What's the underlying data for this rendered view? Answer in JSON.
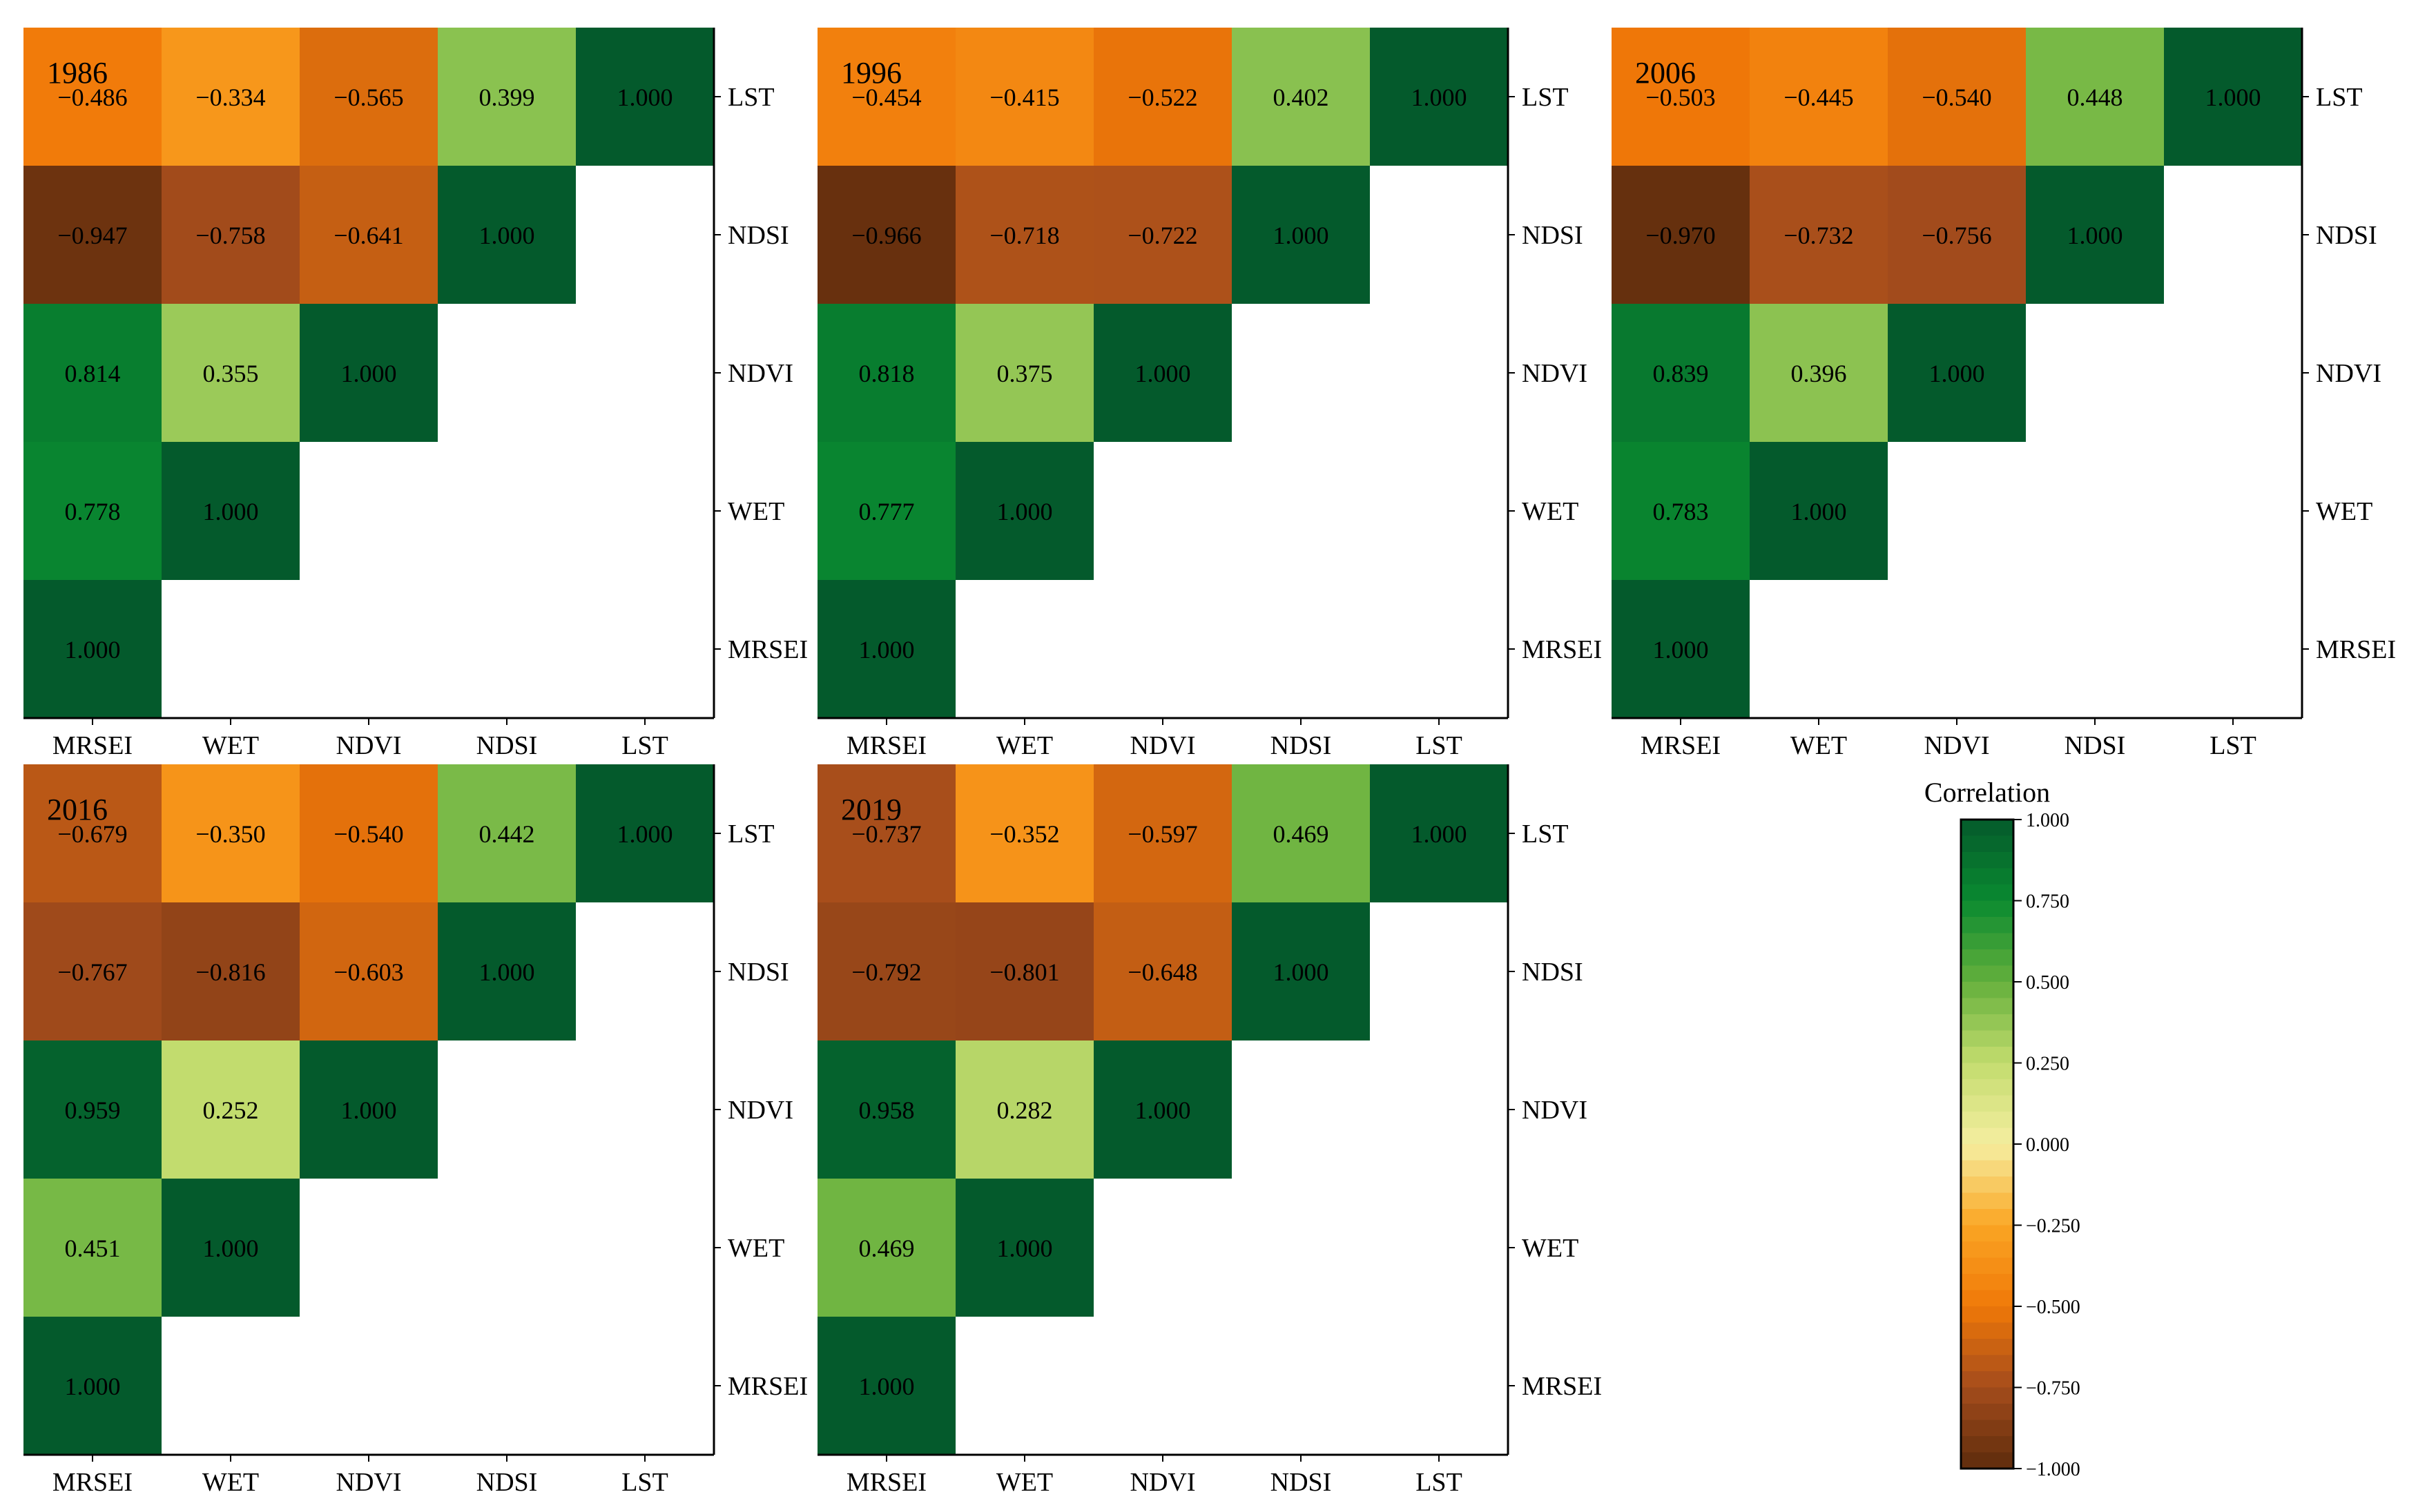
{
  "chart_data": {
    "type": "heatmap",
    "variables": [
      "MRSEI",
      "WET",
      "NDVI",
      "NDSI",
      "LST"
    ],
    "panels": [
      {
        "title": "1986",
        "matrix": [
          [
            1.0,
            null,
            null,
            null,
            null
          ],
          [
            0.778,
            1.0,
            null,
            null,
            null
          ],
          [
            0.814,
            0.355,
            1.0,
            null,
            null
          ],
          [
            -0.947,
            -0.758,
            -0.641,
            1.0,
            null
          ],
          [
            -0.486,
            -0.334,
            -0.565,
            0.399,
            1.0
          ]
        ],
        "labels": [
          [
            "1.000",
            "",
            "",
            "",
            ""
          ],
          [
            "0.778",
            "1.000",
            "",
            "",
            ""
          ],
          [
            "0.814",
            "0.355",
            "1.000",
            "",
            ""
          ],
          [
            "−0.947",
            "−0.758",
            "−0.641",
            "1.000",
            ""
          ],
          [
            "−0.486",
            "−0.334",
            "−0.565",
            "0.399",
            "1.000"
          ]
        ]
      },
      {
        "title": "1996",
        "matrix": [
          [
            1.0,
            null,
            null,
            null,
            null
          ],
          [
            0.777,
            1.0,
            null,
            null,
            null
          ],
          [
            0.818,
            0.375,
            1.0,
            null,
            null
          ],
          [
            -0.966,
            -0.718,
            -0.722,
            1.0,
            null
          ],
          [
            -0.454,
            -0.415,
            -0.522,
            0.402,
            1.0
          ]
        ],
        "labels": [
          [
            "1.000",
            "",
            "",
            "",
            ""
          ],
          [
            "0.777",
            "1.000",
            "",
            "",
            ""
          ],
          [
            "0.818",
            "0.375",
            "1.000",
            "",
            ""
          ],
          [
            "−0.966",
            "−0.718",
            "−0.722",
            "1.000",
            ""
          ],
          [
            "−0.454",
            "−0.415",
            "−0.522",
            "0.402",
            "1.000"
          ]
        ]
      },
      {
        "title": "2006",
        "matrix": [
          [
            1.0,
            null,
            null,
            null,
            null
          ],
          [
            0.783,
            1.0,
            null,
            null,
            null
          ],
          [
            0.839,
            0.396,
            1.0,
            null,
            null
          ],
          [
            -0.97,
            -0.732,
            -0.756,
            1.0,
            null
          ],
          [
            -0.503,
            -0.445,
            -0.54,
            0.448,
            1.0
          ]
        ],
        "labels": [
          [
            "1.000",
            "",
            "",
            "",
            ""
          ],
          [
            "0.783",
            "1.000",
            "",
            "",
            ""
          ],
          [
            "0.839",
            "0.396",
            "1.000",
            "",
            ""
          ],
          [
            "−0.970",
            "−0.732",
            "−0.756",
            "1.000",
            ""
          ],
          [
            "−0.503",
            "−0.445",
            "−0.540",
            "0.448",
            "1.000"
          ]
        ]
      },
      {
        "title": "2016",
        "matrix": [
          [
            1.0,
            null,
            null,
            null,
            null
          ],
          [
            0.451,
            1.0,
            null,
            null,
            null
          ],
          [
            0.959,
            0.252,
            1.0,
            null,
            null
          ],
          [
            -0.767,
            -0.816,
            -0.603,
            1.0,
            null
          ],
          [
            -0.679,
            -0.35,
            -0.54,
            0.442,
            1.0
          ]
        ],
        "labels": [
          [
            "1.000",
            "",
            "",
            "",
            ""
          ],
          [
            "0.451",
            "1.000",
            "",
            "",
            ""
          ],
          [
            "0.959",
            "0.252",
            "1.000",
            "",
            ""
          ],
          [
            "−0.767",
            "−0.816",
            "−0.603",
            "1.000",
            ""
          ],
          [
            "−0.679",
            "−0.350",
            "−0.540",
            "0.442",
            "1.000"
          ]
        ]
      },
      {
        "title": "2019",
        "matrix": [
          [
            1.0,
            null,
            null,
            null,
            null
          ],
          [
            0.469,
            1.0,
            null,
            null,
            null
          ],
          [
            0.958,
            0.282,
            1.0,
            null,
            null
          ],
          [
            -0.792,
            -0.801,
            -0.648,
            1.0,
            null
          ],
          [
            -0.737,
            -0.352,
            -0.597,
            0.469,
            1.0
          ]
        ],
        "labels": [
          [
            "1.000",
            "",
            "",
            "",
            ""
          ],
          [
            "0.469",
            "1.000",
            "",
            "",
            ""
          ],
          [
            "0.958",
            "0.282",
            "1.000",
            "",
            ""
          ],
          [
            "−0.792",
            "−0.801",
            "−0.648",
            "1.000",
            ""
          ],
          [
            "−0.737",
            "−0.352",
            "−0.597",
            "0.469",
            "1.000"
          ]
        ]
      }
    ],
    "colorbar": {
      "title": "Correlation",
      "range": [
        -1.0,
        1.0
      ],
      "ticks": [
        1.0,
        0.75,
        0.5,
        0.25,
        0.0,
        -0.25,
        -0.5,
        -0.75,
        -1.0
      ],
      "tick_labels": [
        "1.000",
        "0.750",
        "0.500",
        "0.250",
        "0.000",
        "−0.250",
        "−0.500",
        "−0.750",
        "−1.000"
      ],
      "colorscale": [
        [
          -1.0,
          "#5e2c0c"
        ],
        [
          -0.75,
          "#a44c1c"
        ],
        [
          -0.5,
          "#f07808"
        ],
        [
          -0.25,
          "#faa624"
        ],
        [
          0.0,
          "#f5eea0"
        ],
        [
          0.25,
          "#c3dc6e"
        ],
        [
          0.5,
          "#64b03c"
        ],
        [
          0.75,
          "#0a8a30"
        ],
        [
          1.0,
          "#045a2c"
        ]
      ]
    }
  }
}
